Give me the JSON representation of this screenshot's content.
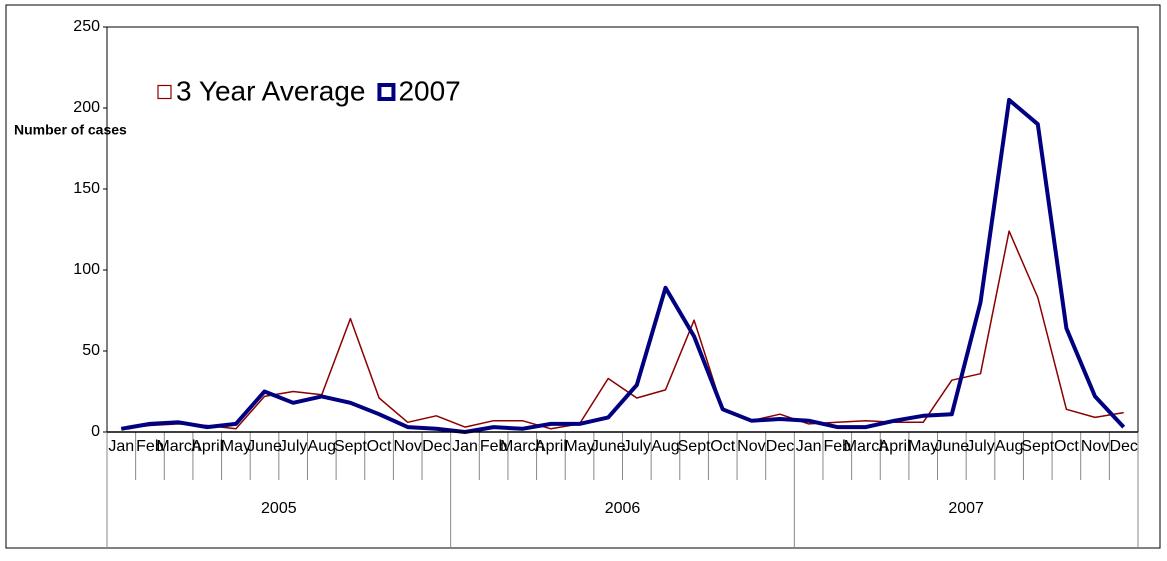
{
  "chart_data": {
    "type": "line",
    "y_label": "Number of cases",
    "categories": [
      "Jan",
      "Feb",
      "March",
      "April",
      "May",
      "June",
      "July",
      "Aug",
      "Sept",
      "Oct",
      "Nov",
      "Dec",
      "Jan",
      "Feb",
      "March",
      "April",
      "May",
      "June",
      "July",
      "Aug",
      "Sept",
      "Oct",
      "Nov",
      "Dec",
      "Jan",
      "Feb",
      "March",
      "April",
      "May",
      "June",
      "July",
      "Aug",
      "Sept",
      "Oct",
      "Nov",
      "Dec"
    ],
    "groups": [
      "2005",
      "2006",
      "2007"
    ],
    "series": [
      {
        "name": "3 Year Average",
        "color": "#8b0000",
        "values": [
          2,
          4,
          5,
          4,
          2,
          22,
          25,
          23,
          70,
          21,
          6,
          10,
          3,
          7,
          7,
          2,
          5,
          33,
          21,
          26,
          69,
          14,
          7,
          11,
          5,
          6,
          7,
          6,
          6,
          32,
          36,
          124,
          83,
          14,
          9,
          12
        ]
      },
      {
        "name": "2007",
        "color": "#000080",
        "values": [
          2,
          5,
          6,
          3,
          5,
          25,
          18,
          22,
          18,
          11,
          3,
          2,
          0,
          3,
          2,
          5,
          5,
          9,
          29,
          89,
          59,
          14,
          7,
          8,
          7,
          3,
          3,
          7,
          10,
          11,
          80,
          205,
          190,
          64,
          22,
          3
        ]
      }
    ],
    "ylim": [
      0,
      250
    ],
    "yticks": [
      0,
      50,
      100,
      150,
      200,
      250
    ],
    "grid": false
  }
}
